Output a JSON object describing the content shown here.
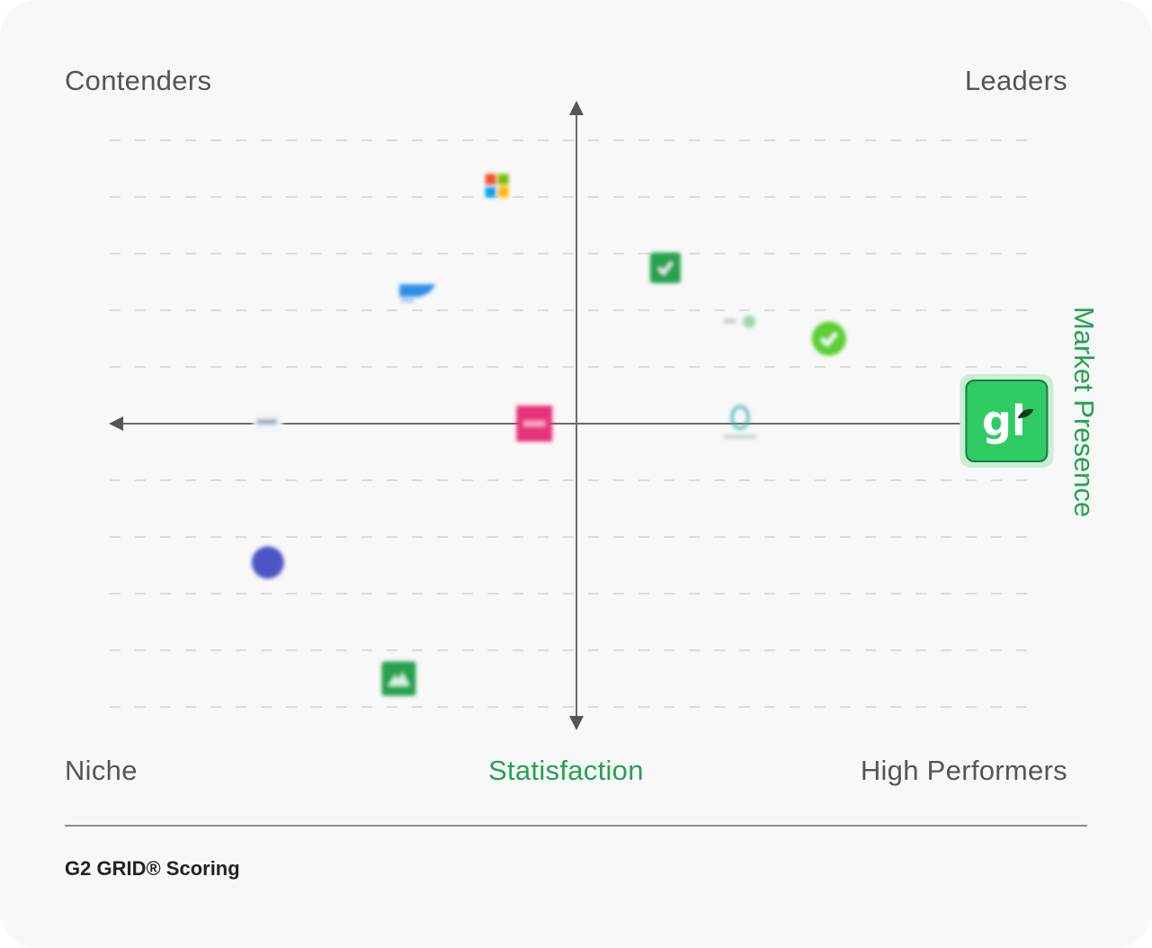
{
  "chart_data": {
    "type": "scatter",
    "title": "G2 GRID® Scoring",
    "xlabel": "Statisfaction",
    "ylabel": "Market Presence",
    "xlim": [
      -10,
      10
    ],
    "ylim": [
      -10,
      10
    ],
    "grid": true,
    "quadrants": {
      "top_left": "Contenders",
      "top_right": "Leaders",
      "bottom_left": "Niche",
      "bottom_right": "High Performers"
    },
    "points": [
      {
        "name": "microsoft-logo",
        "x": -1.7,
        "y": 8.4,
        "shape": "windows",
        "color": "#f25022"
      },
      {
        "name": "blue-product-logo",
        "x": -3.4,
        "y": 4.6,
        "shape": "wordmark",
        "color": "#2e8ee6"
      },
      {
        "name": "green-check-square-logo",
        "x": 1.9,
        "y": 5.5,
        "shape": "square-check",
        "color": "#27a14f"
      },
      {
        "name": "faded-product-logo",
        "x": 3.5,
        "y": 3.6,
        "shape": "faded",
        "color": "#9ed8a8"
      },
      {
        "name": "green-check-circle-logo",
        "x": 5.4,
        "y": 3.0,
        "shape": "circle-check",
        "color": "#5ccf32"
      },
      {
        "name": "pink-product-logo",
        "x": -0.9,
        "y": 0.0,
        "shape": "square",
        "color": "#e8317a"
      },
      {
        "name": "grey-product-logo",
        "x": -6.6,
        "y": 0.0,
        "shape": "faded-grey",
        "color": "#9aa9c0"
      },
      {
        "name": "teal-product-logo",
        "x": 3.5,
        "y": 0.0,
        "shape": "drop",
        "color": "#3fb3b3"
      },
      {
        "name": "indigo-circle-logo",
        "x": -6.6,
        "y": -4.9,
        "shape": "circle",
        "color": "#4d57c6"
      },
      {
        "name": "green-mountain-logo",
        "x": -3.8,
        "y": -9.0,
        "shape": "square-mountain",
        "color": "#27a14f"
      },
      {
        "name": "gl-logo",
        "x": 9.2,
        "y": 0.0,
        "shape": "highlight",
        "color": "#2ecc63",
        "label": "gl"
      }
    ]
  },
  "footer": {
    "title": "G2 GRID® Scoring"
  }
}
